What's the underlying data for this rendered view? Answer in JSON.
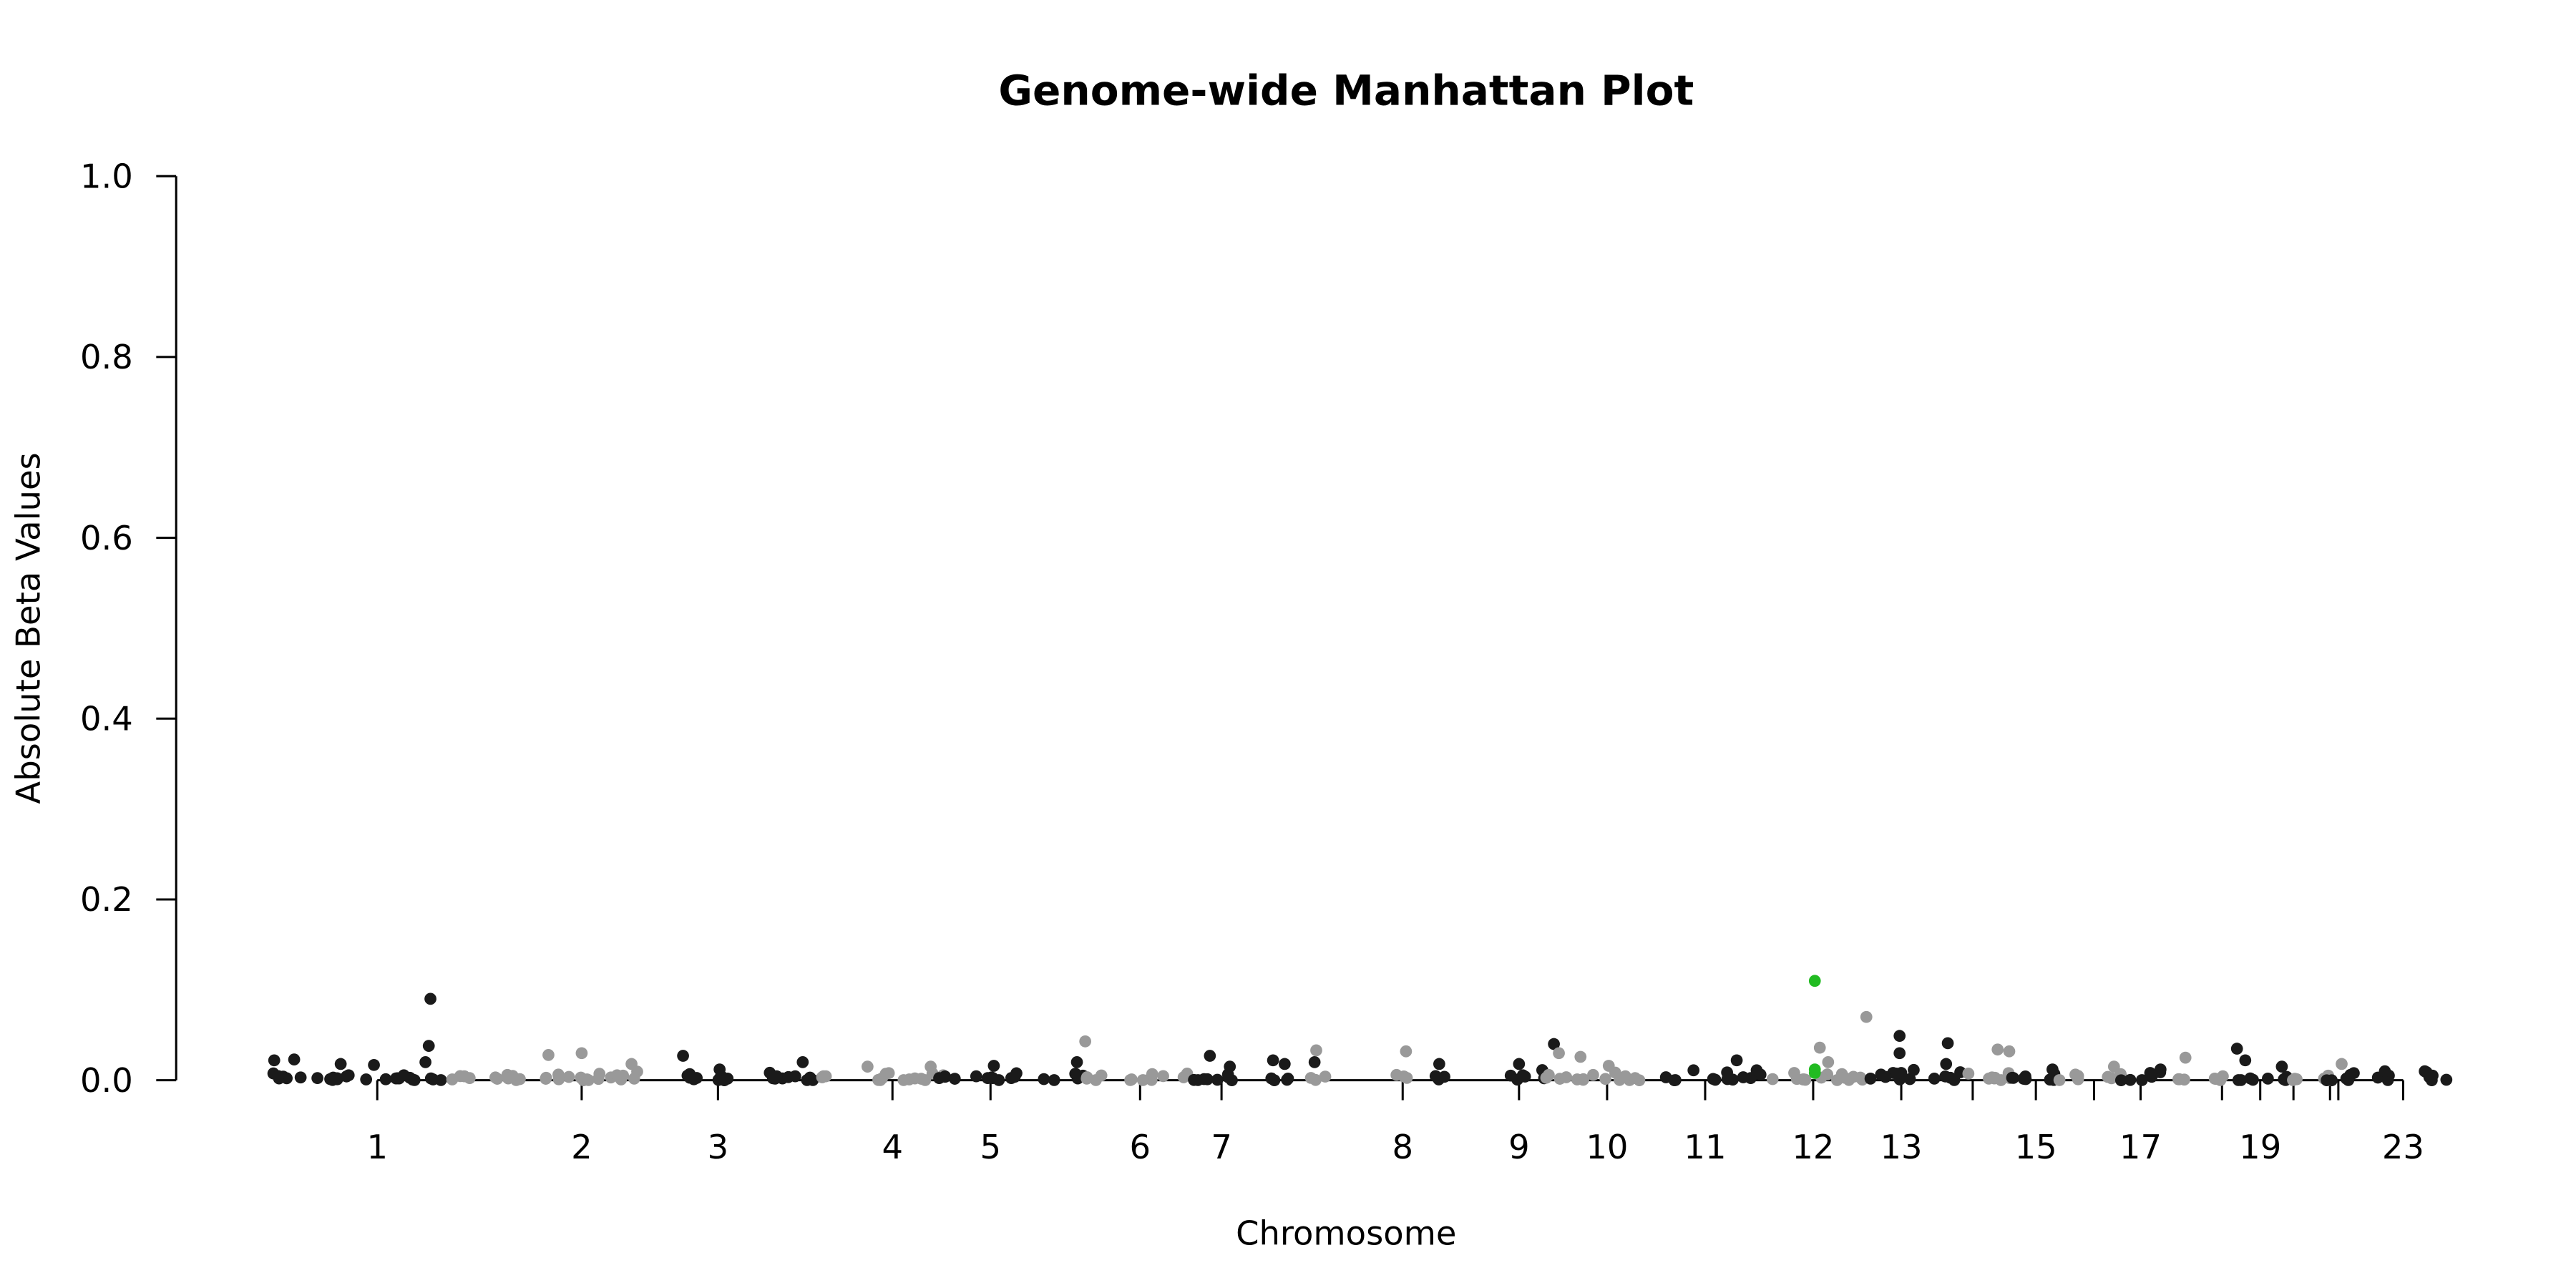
{
  "chart_data": {
    "type": "scatter",
    "title": "Genome-wide Manhattan Plot",
    "xlabel": "Chromosome",
    "ylabel": "Absolute Beta Values",
    "ylim": [
      0,
      1.0
    ],
    "yticks": [
      "0.0",
      "0.2",
      "0.4",
      "0.6",
      "0.8",
      "1.0"
    ],
    "xticks": [
      {
        "label": "1",
        "pos": 227
      },
      {
        "label": "2",
        "pos": 350
      },
      {
        "label": "3",
        "pos": 432
      },
      {
        "label": "4",
        "pos": 537
      },
      {
        "label": "5",
        "pos": 596
      },
      {
        "label": "6",
        "pos": 686
      },
      {
        "label": "7",
        "pos": 735
      },
      {
        "label": "8",
        "pos": 844
      },
      {
        "label": "9",
        "pos": 914
      },
      {
        "label": "10",
        "pos": 967
      },
      {
        "label": "11",
        "pos": 1026
      },
      {
        "label": "12",
        "pos": 1091
      },
      {
        "label": "13",
        "pos": 1144
      },
      {
        "label": "",
        "pos": 1187
      },
      {
        "label": "15",
        "pos": 1225
      },
      {
        "label": "",
        "pos": 1260
      },
      {
        "label": "17",
        "pos": 1288
      },
      {
        "label": "",
        "pos": 1337
      },
      {
        "label": "19",
        "pos": 1360
      },
      {
        "label": "",
        "pos": 1380
      },
      {
        "label": "",
        "pos": 1402
      },
      {
        "label": "",
        "pos": 1407
      },
      {
        "label": "23",
        "pos": 1446
      }
    ],
    "xrange": [
      155,
      1477
    ],
    "grid": false,
    "colors": {
      "dark": "#1a1a1a",
      "light": "#999999",
      "highlight": "#22bb22"
    },
    "segments": [
      {
        "start": 155,
        "end": 210,
        "shade": "dark"
      },
      {
        "start": 220,
        "end": 268,
        "shade": "dark"
      },
      {
        "start": 268,
        "end": 315,
        "shade": "light"
      },
      {
        "start": 328,
        "end": 395,
        "shade": "light"
      },
      {
        "start": 405,
        "end": 445,
        "shade": "dark"
      },
      {
        "start": 452,
        "end": 490,
        "shade": "dark"
      },
      {
        "start": 490,
        "end": 497,
        "shade": "light"
      },
      {
        "start": 518,
        "end": 570,
        "shade": "light"
      },
      {
        "start": 563,
        "end": 612,
        "shade": "dark"
      },
      {
        "start": 628,
        "end": 652,
        "shade": "dark"
      },
      {
        "start": 652,
        "end": 668,
        "shade": "light"
      },
      {
        "start": 678,
        "end": 715,
        "shade": "light"
      },
      {
        "start": 718,
        "end": 748,
        "shade": "dark"
      },
      {
        "start": 760,
        "end": 776,
        "shade": "dark"
      },
      {
        "start": 788,
        "end": 800,
        "shade": "light"
      },
      {
        "start": 840,
        "end": 850,
        "shade": "light"
      },
      {
        "start": 860,
        "end": 872,
        "shade": "dark"
      },
      {
        "start": 906,
        "end": 930,
        "shade": "dark"
      },
      {
        "start": 930,
        "end": 990,
        "shade": "light"
      },
      {
        "start": 998,
        "end": 1010,
        "shade": "dark"
      },
      {
        "start": 1030,
        "end": 1060,
        "shade": "dark"
      },
      {
        "start": 1066,
        "end": 1090,
        "shade": "light"
      },
      {
        "start": 1092,
        "end": 1110,
        "shade": "light"
      },
      {
        "start": 1110,
        "end": 1125,
        "shade": "light"
      },
      {
        "start": 1125,
        "end": 1180,
        "shade": "dark"
      },
      {
        "start": 1180,
        "end": 1212,
        "shade": "light"
      },
      {
        "start": 1208,
        "end": 1238,
        "shade": "dark"
      },
      {
        "start": 1238,
        "end": 1252,
        "shade": "light"
      },
      {
        "start": 1265,
        "end": 1280,
        "shade": "light"
      },
      {
        "start": 1276,
        "end": 1302,
        "shade": "dark"
      },
      {
        "start": 1308,
        "end": 1320,
        "shade": "light"
      },
      {
        "start": 1330,
        "end": 1345,
        "shade": "light"
      },
      {
        "start": 1345,
        "end": 1378,
        "shade": "dark"
      },
      {
        "start": 1375,
        "end": 1385,
        "shade": "light"
      },
      {
        "start": 1395,
        "end": 1405,
        "shade": "light"
      },
      {
        "start": 1400,
        "end": 1425,
        "shade": "dark"
      },
      {
        "start": 1430,
        "end": 1440,
        "shade": "dark"
      },
      {
        "start": 1458,
        "end": 1477,
        "shade": "dark"
      }
    ],
    "peaks": [
      {
        "x": 165,
        "y": 0.022,
        "shade": "dark"
      },
      {
        "x": 177,
        "y": 0.023,
        "shade": "dark"
      },
      {
        "x": 205,
        "y": 0.018,
        "shade": "dark"
      },
      {
        "x": 225,
        "y": 0.017,
        "shade": "dark"
      },
      {
        "x": 256,
        "y": 0.02,
        "shade": "dark"
      },
      {
        "x": 258,
        "y": 0.038,
        "shade": "dark"
      },
      {
        "x": 259,
        "y": 0.09,
        "shade": "dark"
      },
      {
        "x": 330,
        "y": 0.028,
        "shade": "light"
      },
      {
        "x": 350,
        "y": 0.03,
        "shade": "light"
      },
      {
        "x": 380,
        "y": 0.018,
        "shade": "light"
      },
      {
        "x": 411,
        "y": 0.027,
        "shade": "dark"
      },
      {
        "x": 433,
        "y": 0.012,
        "shade": "dark"
      },
      {
        "x": 483,
        "y": 0.02,
        "shade": "dark"
      },
      {
        "x": 522,
        "y": 0.015,
        "shade": "light"
      },
      {
        "x": 560,
        "y": 0.015,
        "shade": "light"
      },
      {
        "x": 598,
        "y": 0.016,
        "shade": "dark"
      },
      {
        "x": 648,
        "y": 0.02,
        "shade": "dark"
      },
      {
        "x": 653,
        "y": 0.043,
        "shade": "light"
      },
      {
        "x": 728,
        "y": 0.027,
        "shade": "dark"
      },
      {
        "x": 740,
        "y": 0.015,
        "shade": "dark"
      },
      {
        "x": 766,
        "y": 0.022,
        "shade": "dark"
      },
      {
        "x": 773,
        "y": 0.018,
        "shade": "dark"
      },
      {
        "x": 791,
        "y": 0.02,
        "shade": "dark"
      },
      {
        "x": 792,
        "y": 0.033,
        "shade": "light"
      },
      {
        "x": 846,
        "y": 0.032,
        "shade": "light"
      },
      {
        "x": 866,
        "y": 0.018,
        "shade": "dark"
      },
      {
        "x": 914,
        "y": 0.018,
        "shade": "dark"
      },
      {
        "x": 935,
        "y": 0.04,
        "shade": "dark"
      },
      {
        "x": 938,
        "y": 0.03,
        "shade": "light"
      },
      {
        "x": 951,
        "y": 0.026,
        "shade": "light"
      },
      {
        "x": 968,
        "y": 0.016,
        "shade": "light"
      },
      {
        "x": 1019,
        "y": 0.011,
        "shade": "dark"
      },
      {
        "x": 1045,
        "y": 0.022,
        "shade": "dark"
      },
      {
        "x": 1057,
        "y": 0.011,
        "shade": "dark"
      },
      {
        "x": 1092,
        "y": 0.11,
        "shade": "highlight"
      },
      {
        "x": 1092,
        "y": 0.012,
        "shade": "highlight"
      },
      {
        "x": 1092,
        "y": 0.008,
        "shade": "highlight"
      },
      {
        "x": 1095,
        "y": 0.036,
        "shade": "light"
      },
      {
        "x": 1100,
        "y": 0.02,
        "shade": "light"
      },
      {
        "x": 1123,
        "y": 0.07,
        "shade": "light"
      },
      {
        "x": 1143,
        "y": 0.049,
        "shade": "dark"
      },
      {
        "x": 1143,
        "y": 0.03,
        "shade": "dark"
      },
      {
        "x": 1171,
        "y": 0.018,
        "shade": "dark"
      },
      {
        "x": 1172,
        "y": 0.041,
        "shade": "dark"
      },
      {
        "x": 1202,
        "y": 0.034,
        "shade": "light"
      },
      {
        "x": 1209,
        "y": 0.032,
        "shade": "light"
      },
      {
        "x": 1235,
        "y": 0.012,
        "shade": "dark"
      },
      {
        "x": 1272,
        "y": 0.015,
        "shade": "light"
      },
      {
        "x": 1300,
        "y": 0.012,
        "shade": "dark"
      },
      {
        "x": 1315,
        "y": 0.025,
        "shade": "light"
      },
      {
        "x": 1346,
        "y": 0.035,
        "shade": "dark"
      },
      {
        "x": 1351,
        "y": 0.022,
        "shade": "dark"
      },
      {
        "x": 1373,
        "y": 0.015,
        "shade": "dark"
      },
      {
        "x": 1409,
        "y": 0.018,
        "shade": "light"
      },
      {
        "x": 1435,
        "y": 0.01,
        "shade": "dark"
      },
      {
        "x": 1459,
        "y": 0.01,
        "shade": "dark"
      }
    ]
  }
}
